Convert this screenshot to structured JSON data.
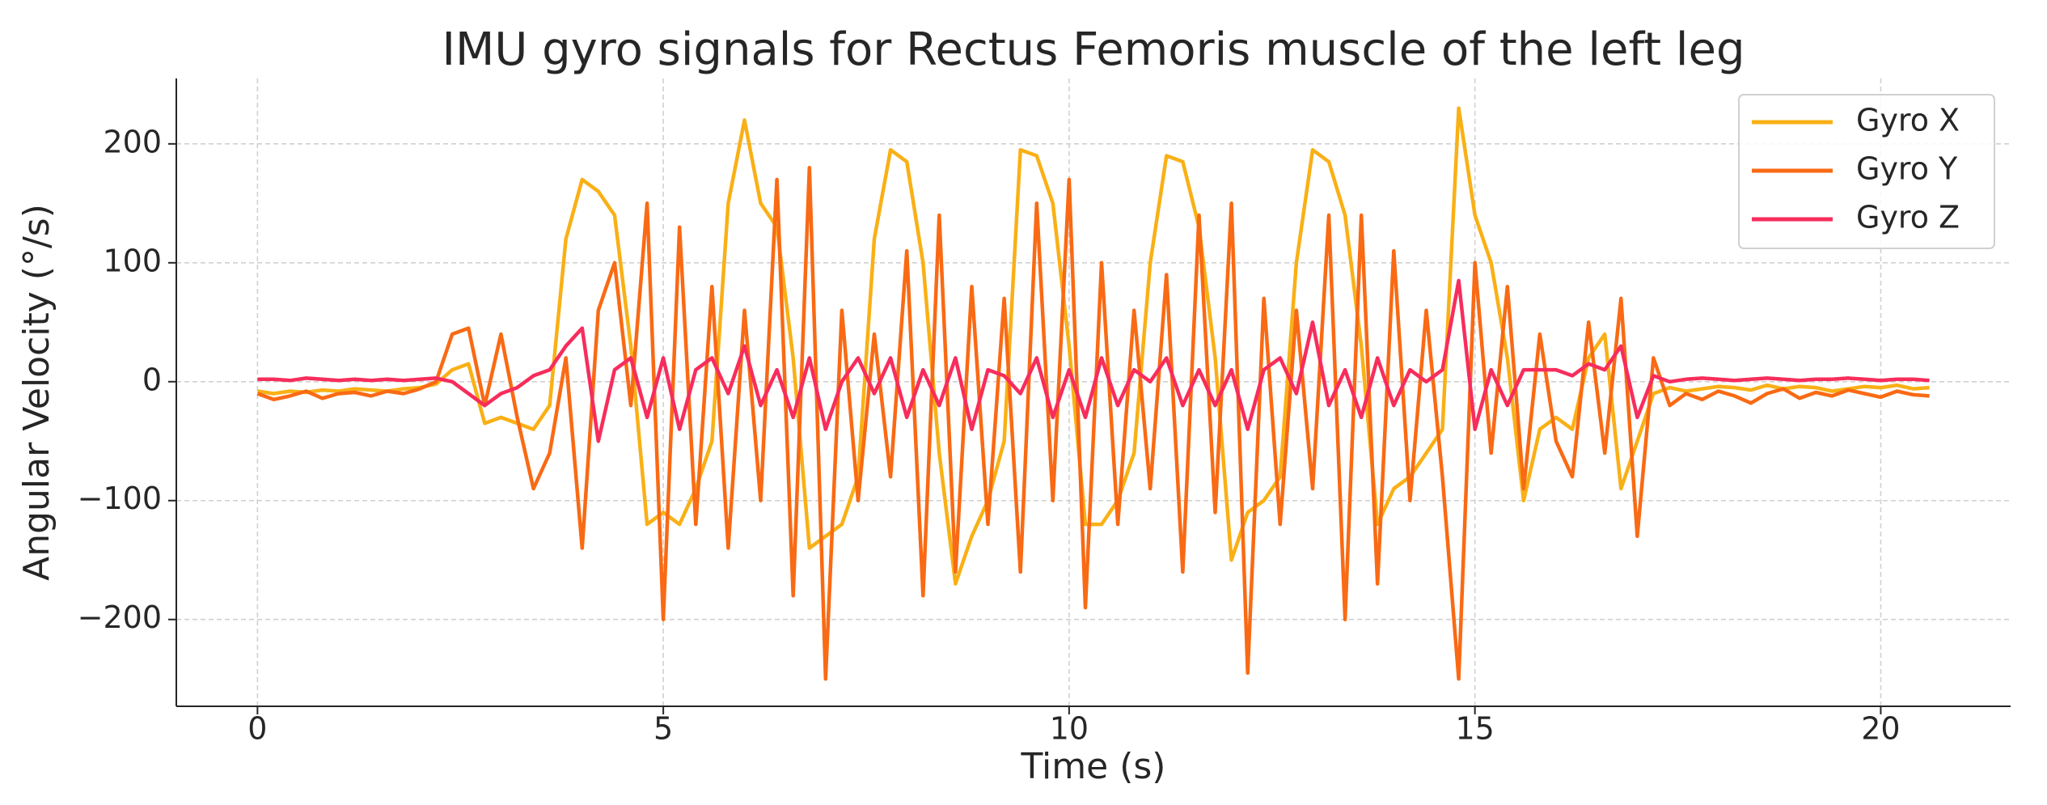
{
  "chart_data": {
    "type": "line",
    "title": "IMU gyro signals for Rectus Femoris muscle of the left leg",
    "x_label": "Time (s)",
    "y_label": "Angular Velocity (°/s)",
    "x": [
      0,
      0.2,
      0.4,
      0.6,
      0.8,
      1,
      1.2,
      1.4,
      1.6,
      1.8,
      2,
      2.2,
      2.4,
      2.6,
      2.8,
      3,
      3.2,
      3.4,
      3.6,
      3.8,
      4,
      4.2,
      4.4,
      4.6,
      4.8,
      5,
      5.2,
      5.4,
      5.6,
      5.8,
      6,
      6.2,
      6.4,
      6.6,
      6.8,
      7,
      7.2,
      7.4,
      7.6,
      7.8,
      8,
      8.2,
      8.4,
      8.6,
      8.8,
      9,
      9.2,
      9.4,
      9.6,
      9.8,
      10,
      10.2,
      10.4,
      10.6,
      10.8,
      11,
      11.2,
      11.4,
      11.6,
      11.8,
      12,
      12.2,
      12.4,
      12.6,
      12.8,
      13,
      13.2,
      13.4,
      13.6,
      13.8,
      14,
      14.2,
      14.4,
      14.6,
      14.8,
      15,
      15.2,
      15.4,
      15.6,
      15.8,
      16,
      16.2,
      16.4,
      16.6,
      16.8,
      17,
      17.2,
      17.4,
      17.6,
      17.8,
      18,
      18.2,
      18.4,
      18.6,
      18.8,
      19,
      19.2,
      19.4,
      19.6,
      19.8,
      20,
      20.2,
      20.4,
      20.6
    ],
    "series": [
      {
        "name": "Gyro X",
        "color": "#f9b016",
        "values": [
          -8,
          -10,
          -8,
          -9,
          -7,
          -8,
          -6,
          -7,
          -8,
          -6,
          -5,
          -2,
          10,
          15,
          -35,
          -30,
          -35,
          -40,
          -20,
          120,
          170,
          160,
          140,
          30,
          -120,
          -110,
          -120,
          -90,
          -50,
          150,
          220,
          150,
          130,
          20,
          -140,
          -130,
          -120,
          -80,
          120,
          195,
          185,
          100,
          -60,
          -170,
          -130,
          -100,
          -50,
          195,
          190,
          150,
          30,
          -120,
          -120,
          -100,
          -60,
          100,
          190,
          185,
          130,
          20,
          -150,
          -110,
          -100,
          -80,
          100,
          195,
          185,
          140,
          30,
          -120,
          -90,
          -80,
          -60,
          -40,
          230,
          140,
          100,
          20,
          -100,
          -40,
          -30,
          -40,
          20,
          40,
          -90,
          -50,
          -10,
          -5,
          -8,
          -6,
          -4,
          -5,
          -7,
          -3,
          -6,
          -4,
          -5,
          -8,
          -6,
          -4,
          -5,
          -3,
          -6,
          -5
        ]
      },
      {
        "name": "Gyro Y",
        "color": "#f96a14",
        "values": [
          -10,
          -15,
          -12,
          -8,
          -14,
          -10,
          -9,
          -12,
          -8,
          -10,
          -6,
          0,
          40,
          45,
          -20,
          40,
          -30,
          -90,
          -60,
          20,
          -140,
          60,
          100,
          -20,
          150,
          -200,
          130,
          -120,
          80,
          -140,
          60,
          -100,
          170,
          -180,
          180,
          -250,
          60,
          -100,
          40,
          -80,
          110,
          -180,
          140,
          -160,
          80,
          -120,
          70,
          -160,
          150,
          -100,
          170,
          -190,
          100,
          -120,
          60,
          -90,
          90,
          -160,
          140,
          -110,
          150,
          -245,
          70,
          -120,
          60,
          -90,
          140,
          -200,
          140,
          -170,
          110,
          -100,
          60,
          -80,
          -250,
          100,
          -60,
          80,
          -90,
          40,
          -50,
          -80,
          50,
          -60,
          70,
          -130,
          20,
          -20,
          -10,
          -15,
          -8,
          -12,
          -18,
          -10,
          -6,
          -14,
          -9,
          -12,
          -7,
          -10,
          -13,
          -8,
          -11,
          -12
        ]
      },
      {
        "name": "Gyro Z",
        "color": "#f72d5c",
        "values": [
          2,
          2,
          1,
          3,
          2,
          1,
          2,
          1,
          2,
          1,
          2,
          3,
          0,
          -10,
          -20,
          -10,
          -5,
          5,
          10,
          30,
          45,
          -50,
          10,
          20,
          -30,
          20,
          -40,
          10,
          20,
          -10,
          30,
          -20,
          10,
          -30,
          20,
          -40,
          0,
          20,
          -10,
          20,
          -30,
          10,
          -20,
          20,
          -40,
          10,
          5,
          -10,
          20,
          -30,
          10,
          -30,
          20,
          -20,
          10,
          0,
          20,
          -20,
          10,
          -20,
          10,
          -40,
          10,
          20,
          -10,
          50,
          -20,
          10,
          -30,
          20,
          -20,
          10,
          0,
          10,
          85,
          -40,
          10,
          -20,
          10,
          10,
          10,
          5,
          15,
          10,
          30,
          -30,
          5,
          0,
          2,
          3,
          2,
          1,
          2,
          3,
          2,
          1,
          2,
          2,
          3,
          2,
          1,
          2,
          2,
          1
        ]
      }
    ],
    "xlim": [
      -1.0,
      21.6
    ],
    "ylim": [
      -273,
      255
    ],
    "xticks": [
      0,
      5,
      10,
      15,
      20
    ],
    "yticks": [
      {
        "value": -200,
        "label": "−200"
      },
      {
        "value": -100,
        "label": "−100"
      },
      0,
      100,
      200
    ],
    "grid": true,
    "legend": "upper right"
  }
}
